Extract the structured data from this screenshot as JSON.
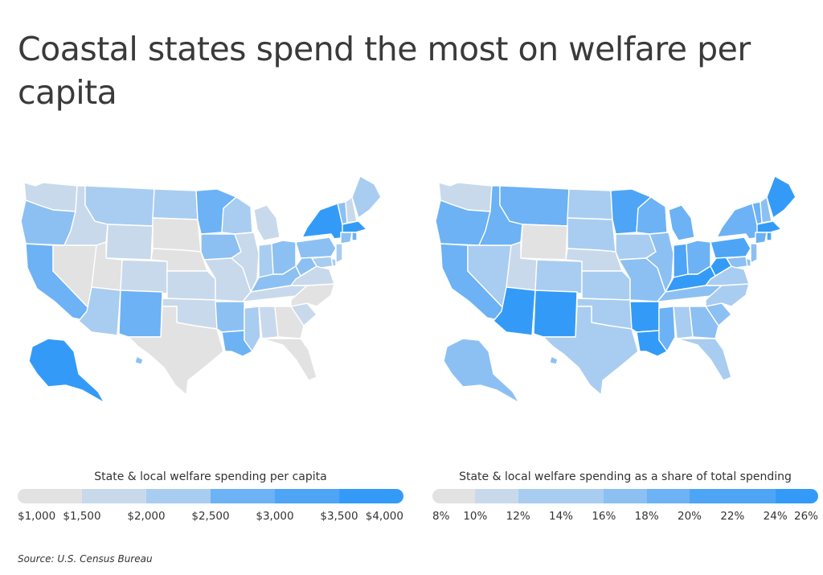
{
  "title": "Coastal states spend the most on welfare per capita",
  "source": "Source:  U.S. Census Bureau",
  "colors": {
    "scale": [
      "#e2e2e2",
      "#c9d9ec",
      "#a9cdf0",
      "#8cc0f3",
      "#6cb2f5",
      "#4ea5f6",
      "#339bf7"
    ]
  },
  "maps": [
    {
      "name": "per-capita",
      "legend_title": "State & local welfare spending per capita",
      "ticks": [
        "$1,000",
        "$1,500",
        "$2,000",
        "$2,500",
        "$3,000",
        "$3,500",
        "$4,000"
      ],
      "levels": {
        "WA": 1,
        "OR": 3,
        "CA": 4,
        "NV": 0,
        "ID": 1,
        "MT": 2,
        "WY": 1,
        "UT": 0,
        "AZ": 2,
        "CO": 1,
        "NM": 4,
        "ND": 2,
        "SD": 0,
        "NE": 0,
        "KS": 1,
        "OK": 1,
        "TX": 0,
        "MN": 4,
        "IA": 3,
        "MO": 1,
        "AR": 3,
        "LA": 4,
        "WI": 2,
        "IL": 1,
        "MI": 1,
        "IN": 2,
        "OH": 3,
        "KY": 3,
        "TN": 1,
        "MS": 2,
        "AL": 1,
        "GA": 0,
        "FL": 0,
        "SC": 1,
        "NC": 0,
        "VA": 1,
        "WV": 3,
        "PA": 3,
        "NY": 6,
        "ME": 2,
        "VT": 3,
        "NH": 1,
        "MA": 6,
        "CT": 3,
        "RI": 4,
        "NJ": 2,
        "DE": 2,
        "MD": 2,
        "AK": 6,
        "HI": 3
      }
    },
    {
      "name": "share",
      "legend_title": "State & local welfare spending as a share of total spending",
      "ticks": [
        "8%",
        "10%",
        "12%",
        "14%",
        "16%",
        "18%",
        "20%",
        "22%",
        "24%",
        "26%"
      ],
      "levels": {
        "WA": 1,
        "OR": 4,
        "CA": 4,
        "NV": 2,
        "ID": 4,
        "MT": 4,
        "WY": 0,
        "UT": 1,
        "AZ": 6,
        "CO": 2,
        "NM": 6,
        "ND": 2,
        "SD": 2,
        "NE": 1,
        "KS": 2,
        "OK": 2,
        "TX": 2,
        "MN": 5,
        "IA": 2,
        "MO": 3,
        "AR": 6,
        "LA": 6,
        "WI": 4,
        "IL": 3,
        "MI": 4,
        "IN": 5,
        "OH": 4,
        "KY": 6,
        "TN": 3,
        "MS": 4,
        "AL": 2,
        "GA": 3,
        "FL": 2,
        "SC": 3,
        "NC": 2,
        "VA": 2,
        "WV": 6,
        "PA": 5,
        "NY": 4,
        "ME": 6,
        "VT": 4,
        "NH": 3,
        "MA": 6,
        "CT": 4,
        "RI": 5,
        "NJ": 3,
        "DE": 3,
        "MD": 3,
        "AK": 3,
        "HI": 3
      }
    }
  ]
}
